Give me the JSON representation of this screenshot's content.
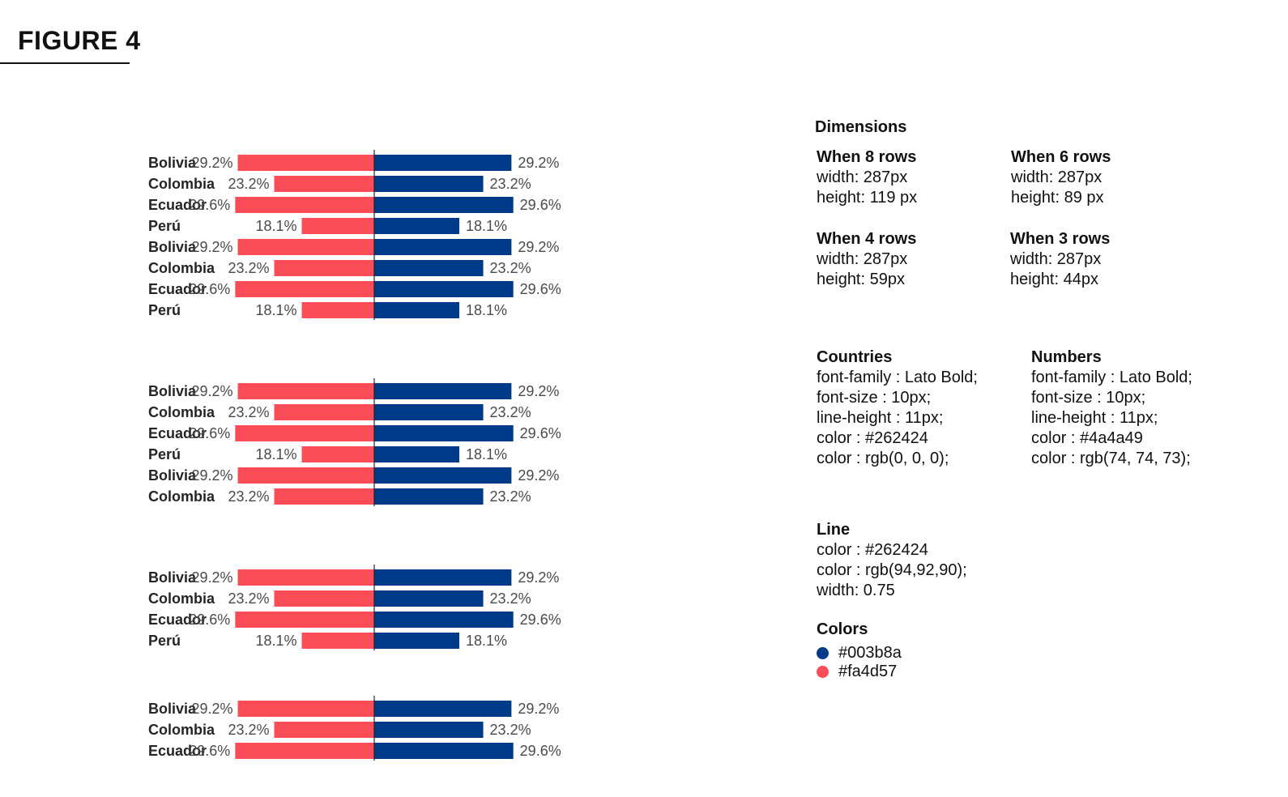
{
  "figure_title": "FIGURE 4",
  "chart_data": [
    {
      "type": "bar",
      "subtype": "diverging-horizontal-bar",
      "categories": [
        "Bolivia",
        "Colombia",
        "Ecuador",
        "Perú",
        "Bolivia",
        "Colombia",
        "Ecuador",
        "Perú"
      ],
      "series": [
        {
          "values": [
            29.2,
            23.2,
            29.6,
            18.1,
            29.2,
            23.2,
            29.6,
            18.1
          ],
          "color": "#fa4d57"
        },
        {
          "values": [
            29.2,
            23.2,
            29.6,
            18.1,
            29.2,
            23.2,
            29.6,
            18.1
          ],
          "color": "#003b8a"
        }
      ],
      "labels": [
        "29.2%",
        "23.2%",
        "29.6%",
        "18.1%",
        "29.2%",
        "23.2%",
        "29.6%",
        "18.1%"
      ]
    },
    {
      "type": "bar",
      "subtype": "diverging-horizontal-bar",
      "categories": [
        "Bolivia",
        "Colombia",
        "Ecuador",
        "Perú",
        "Bolivia",
        "Colombia"
      ],
      "series": [
        {
          "values": [
            29.2,
            23.2,
            29.6,
            18.1,
            29.2,
            23.2
          ],
          "color": "#fa4d57"
        },
        {
          "values": [
            29.2,
            23.2,
            29.6,
            18.1,
            29.2,
            23.2
          ],
          "color": "#003b8a"
        }
      ],
      "labels": [
        "29.2%",
        "23.2%",
        "29.6%",
        "18.1%",
        "29.2%",
        "23.2%"
      ]
    },
    {
      "type": "bar",
      "subtype": "diverging-horizontal-bar",
      "categories": [
        "Bolivia",
        "Colombia",
        "Ecuador",
        "Perú"
      ],
      "series": [
        {
          "values": [
            29.2,
            23.2,
            29.6,
            18.1
          ],
          "color": "#fa4d57"
        },
        {
          "values": [
            29.2,
            23.2,
            29.6,
            18.1
          ],
          "color": "#003b8a"
        }
      ],
      "labels": [
        "29.2%",
        "23.2%",
        "29.6%",
        "18.1%"
      ]
    },
    {
      "type": "bar",
      "subtype": "diverging-horizontal-bar",
      "categories": [
        "Bolivia",
        "Colombia",
        "Ecuador"
      ],
      "series": [
        {
          "values": [
            29.2,
            23.2,
            29.6
          ],
          "color": "#fa4d57"
        },
        {
          "values": [
            29.2,
            23.2,
            29.6
          ],
          "color": "#003b8a"
        }
      ],
      "labels": [
        "29.2%",
        "23.2%",
        "29.6%"
      ]
    }
  ],
  "specs": {
    "dimensions_title": "Dimensions",
    "dimensions": [
      {
        "heading": "When 8 rows",
        "width": "width: 287px",
        "height": "height: 119 px"
      },
      {
        "heading": "When 6 rows",
        "width": "width: 287px",
        "height": "height: 89 px"
      },
      {
        "heading": "When 4 rows",
        "width": "width: 287px",
        "height": "height: 59px"
      },
      {
        "heading": "When 3 rows",
        "width": "width: 287px",
        "height": "height: 44px"
      }
    ],
    "countries": {
      "heading": "Countries",
      "lines": [
        "font-family : Lato Bold;",
        "font-size : 10px;",
        "line-height : 11px;",
        "color : #262424",
        "color : rgb(0, 0, 0);"
      ]
    },
    "numbers": {
      "heading": "Numbers",
      "lines": [
        "font-family : Lato Bold;",
        "font-size : 10px;",
        "line-height : 11px;",
        "color : #4a4a49",
        "color : rgb(74, 74, 73);"
      ]
    },
    "line": {
      "heading": "Line",
      "lines": [
        "color : #262424",
        "color : rgb(94,92,90);",
        "width: 0.75"
      ]
    },
    "colors": {
      "heading": "Colors",
      "items": [
        {
          "hex": "#003b8a",
          "label": "#003b8a"
        },
        {
          "hex": "#fa4d57",
          "label": "#fa4d57"
        }
      ]
    }
  }
}
